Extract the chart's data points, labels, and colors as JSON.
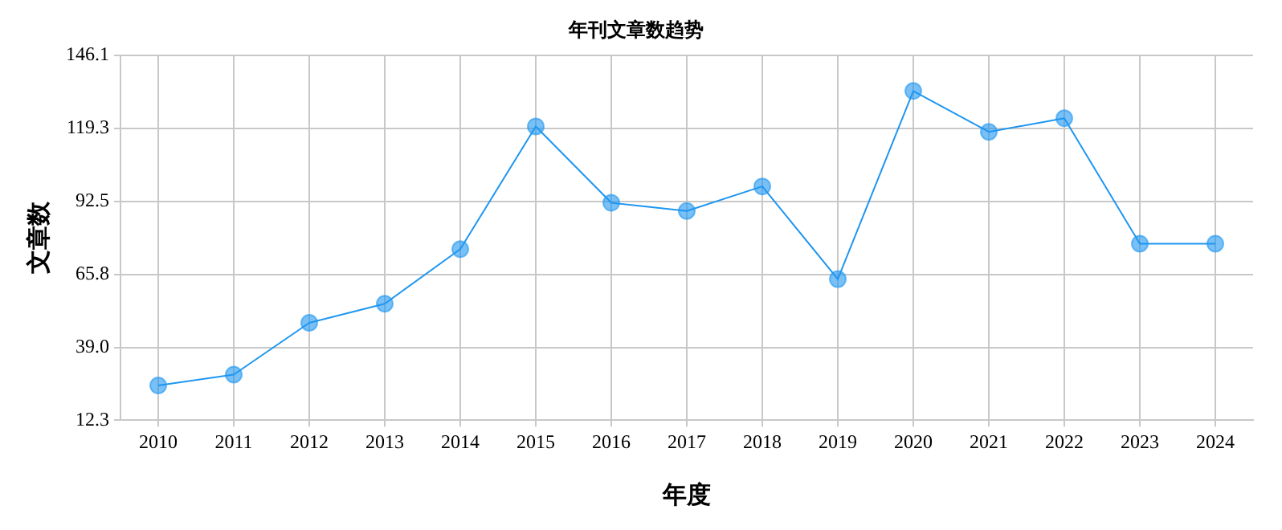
{
  "chart_data": {
    "type": "line",
    "title": "年刊文章数趋势",
    "xlabel": "年度",
    "ylabel": "文章数",
    "categories": [
      "2010",
      "2011",
      "2012",
      "2013",
      "2014",
      "2015",
      "2016",
      "2017",
      "2018",
      "2019",
      "2020",
      "2021",
      "2022",
      "2023",
      "2024"
    ],
    "series": [
      {
        "color": "#1e96f0",
        "values": [
          25,
          29,
          48,
          55,
          75,
          120,
          92,
          89,
          98,
          64,
          133,
          118,
          123,
          77,
          77
        ]
      }
    ],
    "ylim": [
      12.3,
      146.1
    ],
    "yticks": [
      {
        "value": 12.3,
        "label": "12.3"
      },
      {
        "value": 39,
        "label": "39.0"
      },
      {
        "value": 65.8,
        "label": "65.8"
      },
      {
        "value": 92.5,
        "label": "92.5"
      },
      {
        "value": 119.3,
        "label": "119.3"
      },
      {
        "value": 146.1,
        "label": "146.1"
      }
    ],
    "grid": true,
    "marker": "circle",
    "line_style": "solid",
    "legend": false
  }
}
